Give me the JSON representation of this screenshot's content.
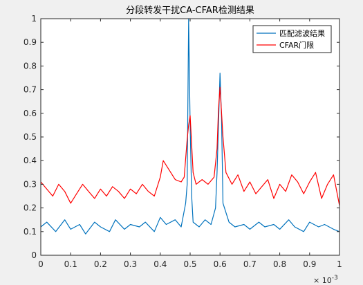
{
  "chart_data": {
    "type": "line",
    "title": "分段转发干扰CA-CFAR检测结果",
    "xlabel": "",
    "ylabel": "",
    "xlim": [
      0,
      1
    ],
    "ylim": [
      0,
      1
    ],
    "x_ticks": [
      0,
      0.1,
      0.2,
      0.3,
      0.4,
      0.5,
      0.6,
      0.7,
      0.8,
      0.9,
      1
    ],
    "x_tick_labels": [
      "0",
      "0.1",
      "0.2",
      "0.3",
      "0.4",
      "0.5",
      "0.6",
      "0.7",
      "0.8",
      "0.9",
      "1"
    ],
    "y_ticks": [
      0,
      0.1,
      0.2,
      0.3,
      0.4,
      0.5,
      0.6,
      0.7,
      0.8,
      0.9,
      1
    ],
    "y_tick_labels": [
      "0",
      "0.1",
      "0.2",
      "0.3",
      "0.4",
      "0.5",
      "0.6",
      "0.7",
      "0.8",
      "0.9",
      "1"
    ],
    "x_exponent_base": "× 10",
    "x_exponent_power": "-3",
    "grid": false,
    "legend_position": "top-right",
    "series": [
      {
        "name": "匹配滤波结果",
        "color": "#0072bd",
        "x": [
          0,
          0.02,
          0.05,
          0.08,
          0.1,
          0.13,
          0.15,
          0.18,
          0.2,
          0.23,
          0.25,
          0.28,
          0.3,
          0.33,
          0.35,
          0.38,
          0.4,
          0.42,
          0.45,
          0.47,
          0.485,
          0.49,
          0.495,
          0.5,
          0.505,
          0.51,
          0.53,
          0.55,
          0.57,
          0.585,
          0.59,
          0.595,
          0.6,
          0.605,
          0.61,
          0.63,
          0.65,
          0.68,
          0.7,
          0.73,
          0.75,
          0.78,
          0.8,
          0.83,
          0.85,
          0.88,
          0.9,
          0.93,
          0.95,
          0.98,
          1
        ],
        "values": [
          0.12,
          0.14,
          0.1,
          0.15,
          0.11,
          0.13,
          0.09,
          0.14,
          0.12,
          0.1,
          0.15,
          0.11,
          0.13,
          0.12,
          0.14,
          0.1,
          0.16,
          0.13,
          0.15,
          0.12,
          0.22,
          0.3,
          1.0,
          0.55,
          0.25,
          0.14,
          0.12,
          0.15,
          0.13,
          0.2,
          0.35,
          0.55,
          0.77,
          0.58,
          0.22,
          0.14,
          0.12,
          0.13,
          0.11,
          0.14,
          0.12,
          0.13,
          0.11,
          0.15,
          0.12,
          0.1,
          0.14,
          0.12,
          0.13,
          0.11,
          0.1
        ]
      },
      {
        "name": "CFAR门限",
        "color": "#ff0000",
        "x": [
          0,
          0.02,
          0.04,
          0.06,
          0.08,
          0.1,
          0.12,
          0.14,
          0.16,
          0.18,
          0.2,
          0.22,
          0.24,
          0.26,
          0.28,
          0.3,
          0.32,
          0.34,
          0.36,
          0.38,
          0.4,
          0.41,
          0.43,
          0.45,
          0.47,
          0.48,
          0.49,
          0.495,
          0.5,
          0.51,
          0.52,
          0.54,
          0.56,
          0.58,
          0.59,
          0.595,
          0.6,
          0.61,
          0.62,
          0.64,
          0.66,
          0.68,
          0.7,
          0.72,
          0.74,
          0.76,
          0.78,
          0.8,
          0.82,
          0.84,
          0.86,
          0.88,
          0.9,
          0.92,
          0.94,
          0.96,
          0.98,
          1
        ],
        "values": [
          0.31,
          0.28,
          0.25,
          0.3,
          0.27,
          0.22,
          0.26,
          0.3,
          0.27,
          0.24,
          0.28,
          0.25,
          0.29,
          0.27,
          0.24,
          0.28,
          0.26,
          0.3,
          0.27,
          0.25,
          0.33,
          0.4,
          0.36,
          0.32,
          0.31,
          0.33,
          0.49,
          0.55,
          0.59,
          0.35,
          0.3,
          0.32,
          0.3,
          0.33,
          0.45,
          0.62,
          0.71,
          0.5,
          0.35,
          0.3,
          0.34,
          0.27,
          0.31,
          0.26,
          0.29,
          0.32,
          0.24,
          0.3,
          0.27,
          0.34,
          0.31,
          0.26,
          0.31,
          0.35,
          0.24,
          0.3,
          0.34,
          0.21
        ]
      }
    ]
  }
}
